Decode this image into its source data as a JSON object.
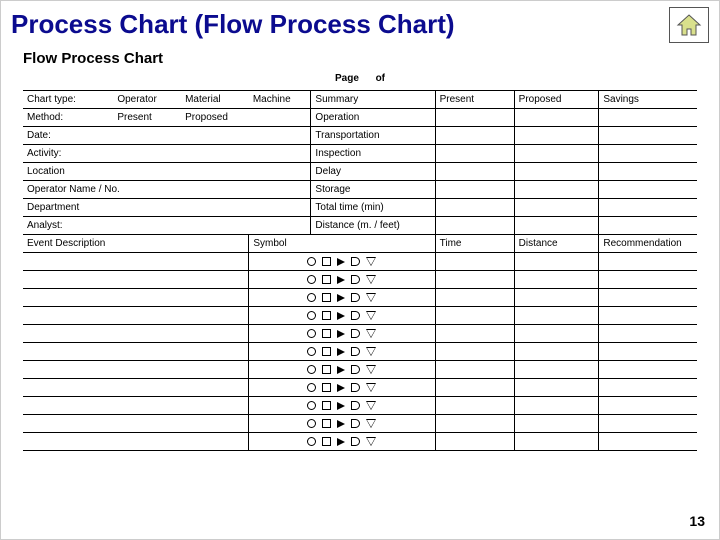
{
  "title": {
    "text": "Process Chart (Flow Process Chart)",
    "color": "#0b0b8f"
  },
  "home_icon": {
    "stroke": "#555555",
    "fill": "#d9e08c"
  },
  "slide_number": "13",
  "chart": {
    "subtitle": "Flow Process Chart",
    "page_label": "Page",
    "of_label": "of",
    "header_row": {
      "chart_type": "Chart type:",
      "operator": "Operator",
      "material": "Material",
      "machine": "Machine",
      "summary": "Summary",
      "present": "Present",
      "proposed": "Proposed",
      "savings": "Savings"
    },
    "left_rows": [
      {
        "label": "Method:",
        "opt1": "Present",
        "opt2": "Proposed"
      },
      {
        "label": "Date:"
      },
      {
        "label": "Activity:"
      },
      {
        "label": "Location"
      },
      {
        "label": "Operator Name / No."
      },
      {
        "label": "Department"
      },
      {
        "label": "Analyst:"
      }
    ],
    "summary_rows": [
      "Operation",
      "Transportation",
      "Inspection",
      "Delay",
      "Storage",
      "Total time (min)",
      "Distance (m. / feet)"
    ],
    "lower_header": {
      "event": "Event Description",
      "symbol": "Symbol",
      "time": "Time",
      "distance": "Distance",
      "recommendation": "Recommendation"
    },
    "symbol_row_count": 11,
    "symbol_shapes": [
      "circle",
      "square",
      "arrow",
      "d",
      "triangle"
    ],
    "colors": {
      "border": "#000000",
      "text": "#000000",
      "background": "#ffffff"
    }
  }
}
